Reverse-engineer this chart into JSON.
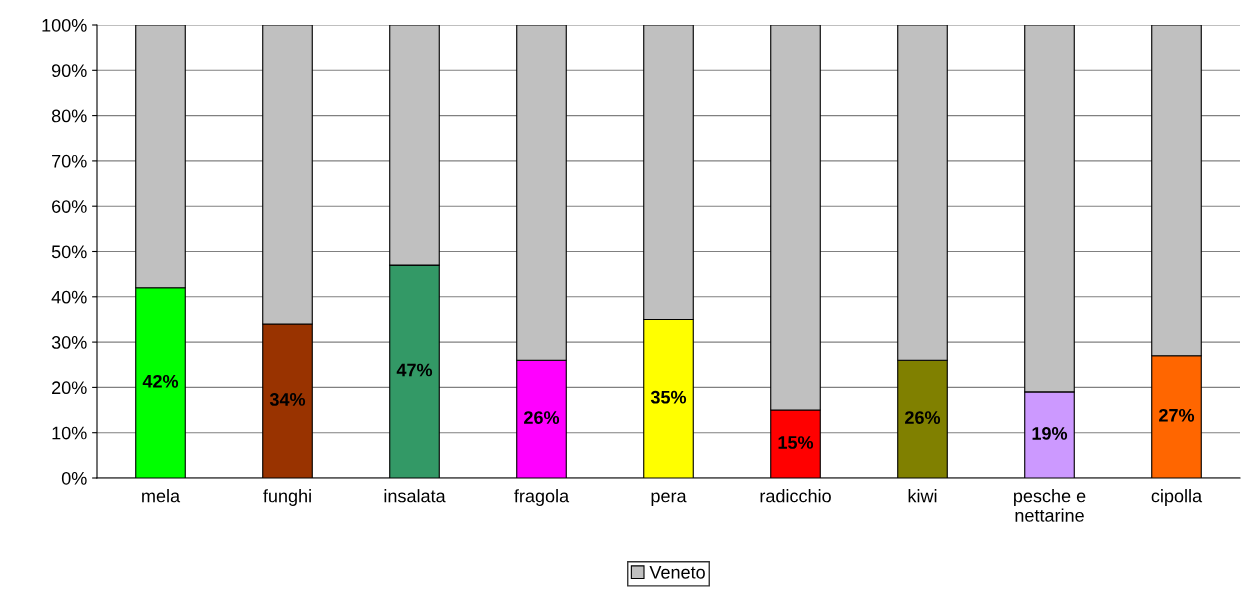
{
  "chart_data": {
    "type": "bar",
    "stacked": true,
    "categories": [
      "mela",
      "funghi",
      "insalata",
      "fragola",
      "pera",
      "radicchio",
      "kiwi",
      "pesche e\nnettarine",
      "cipolla"
    ],
    "series": [
      {
        "colors": [
          "#00ff00",
          "#993300",
          "#339966",
          "#ff00ff",
          "#ffff00",
          "#ff0000",
          "#808000",
          "#cc99ff",
          "#ff6600"
        ],
        "values": [
          42,
          34,
          47,
          26,
          35,
          15,
          26,
          19,
          27
        ],
        "value_labels": [
          "42%",
          "34%",
          "47%",
          "26%",
          "35%",
          "15%",
          "26%",
          "19%",
          "27%"
        ]
      },
      {
        "name": "Veneto",
        "color": "#c0c0c0",
        "values": [
          58,
          66,
          53,
          74,
          65,
          85,
          74,
          81,
          73
        ]
      }
    ],
    "ylim": [
      0,
      100
    ],
    "yticks": [
      {
        "value": 0,
        "label": "0%"
      },
      {
        "value": 10,
        "label": "10%"
      },
      {
        "value": 20,
        "label": "20%"
      },
      {
        "value": 30,
        "label": "30%"
      },
      {
        "value": 40,
        "label": "40%"
      },
      {
        "value": 50,
        "label": "50%"
      },
      {
        "value": 60,
        "label": "60%"
      },
      {
        "value": 70,
        "label": "70%"
      },
      {
        "value": 80,
        "label": "80%"
      },
      {
        "value": 90,
        "label": "90%"
      },
      {
        "value": 100,
        "label": "100%"
      }
    ],
    "grid": "y",
    "legend": "bottom"
  }
}
